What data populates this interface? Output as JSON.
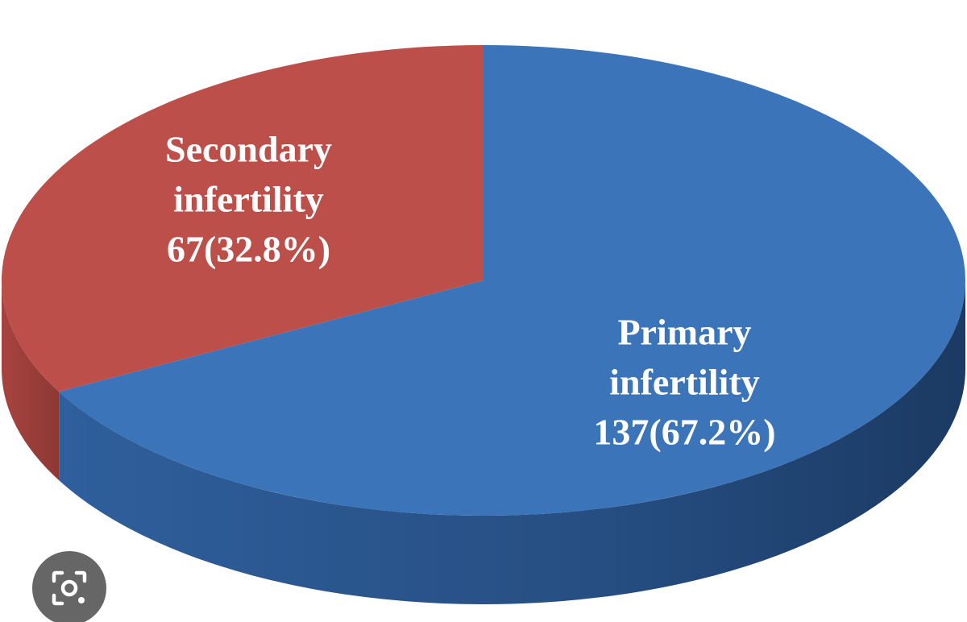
{
  "chart_data": {
    "type": "pie",
    "style": "3d",
    "title": "",
    "slices": [
      {
        "name": "Primary infertility",
        "label_lines": [
          "Primary",
          "infertility",
          "137(67.2%)"
        ],
        "value": 137,
        "percent": 67.2,
        "color": "#3b74b8",
        "side_color": "#2a558d"
      },
      {
        "name": "Secondary infertility",
        "label_lines": [
          "Secondary",
          "infertility",
          "67(32.8%)"
        ],
        "value": 67,
        "percent": 32.8,
        "color": "#bd4f4a",
        "side_color": "#983c38"
      }
    ]
  },
  "overlay": {
    "lens_button_icon": "lens-icon"
  }
}
